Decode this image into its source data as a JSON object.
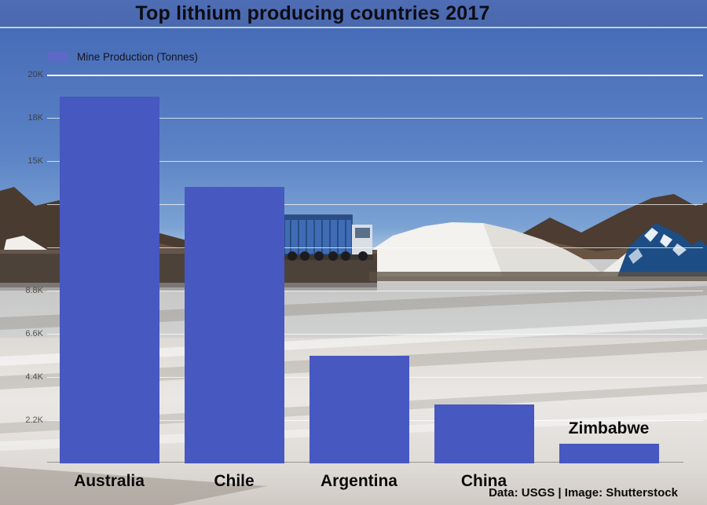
{
  "title": "Top lithium producing countries 2017",
  "legend": {
    "label": "Mine Production (Tonnes)",
    "swatch_color": "#5d69c6"
  },
  "credit": "Data: USGS | Image: Shutterstock",
  "colors": {
    "bar": "#4758c1",
    "title_bar_background": "#4c6ab0",
    "gridline": "#ffffff",
    "blue_mountain_graphic": "#1d4d85"
  },
  "chart_data": {
    "type": "bar",
    "title": "Top lithium producing countries 2017",
    "series_name": "Mine Production (Tonnes)",
    "unit": "tonnes",
    "categories": [
      "Australia",
      "Chile",
      "Argentina",
      "China",
      "Zimbabwe"
    ],
    "values": [
      18700,
      14100,
      5500,
      3000,
      1000
    ],
    "ylim": [
      0,
      20900
    ],
    "gridlines": true,
    "legend_position": "top-left",
    "y_ticks": [
      {
        "value": 2200,
        "label": "2.2K"
      },
      {
        "value": 4400,
        "label": "4.4K"
      },
      {
        "value": 6600,
        "label": "6.6K"
      },
      {
        "value": 8800,
        "label": "8.8K"
      },
      {
        "value": 11000,
        "label": ""
      },
      {
        "value": 13200,
        "label": ""
      },
      {
        "value": 15400,
        "label": "15K"
      },
      {
        "value": 17600,
        "label": "18K"
      },
      {
        "value": 19800,
        "label": "20K"
      }
    ]
  }
}
